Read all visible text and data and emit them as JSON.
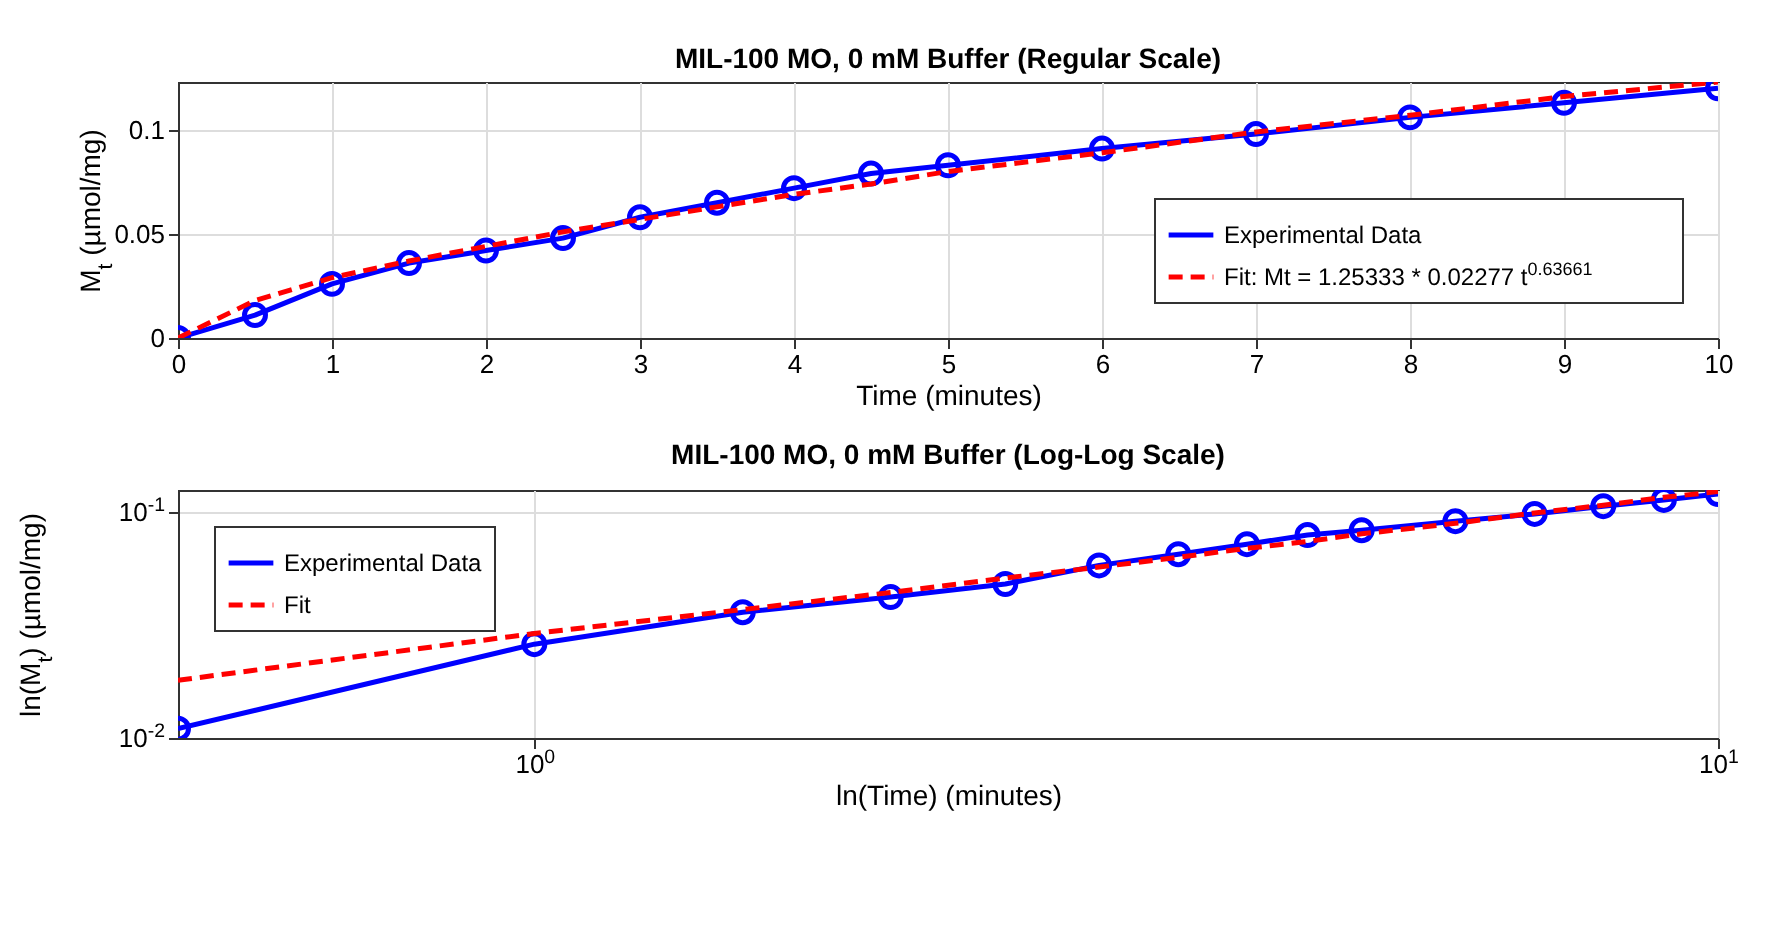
{
  "chart_data": [
    {
      "type": "line",
      "title": "MIL-100 MO, 0 mM Buffer (Regular Scale)",
      "xlabel": "Time (minutes)",
      "ylabel": "M$_{t}$ (µmol/mg)",
      "series": [
        {
          "name": "Experimental Data",
          "color": "#0000ff",
          "marker": "circle",
          "line_style": "solid",
          "x": [
            0,
            0.5,
            1,
            1.5,
            2,
            2.5,
            3,
            3.5,
            4,
            4.5,
            5,
            6,
            7,
            8,
            9,
            10
          ],
          "values": [
            0,
            0.011,
            0.026,
            0.036,
            0.042,
            0.048,
            0.058,
            0.065,
            0.072,
            0.079,
            0.083,
            0.091,
            0.098,
            0.106,
            0.113,
            0.12
          ]
        },
        {
          "name": "Fit: Mt = 1.25333 * 0.02277 t$^{0.63661}$",
          "color": "#ff0000",
          "marker": "none",
          "line_style": "dashed",
          "x": [
            0,
            0.5,
            1,
            1.5,
            2,
            2.5,
            3,
            3.5,
            4,
            4.5,
            5,
            6,
            7,
            8,
            9,
            10
          ],
          "values": [
            0,
            0.018,
            0.029,
            0.037,
            0.044,
            0.051,
            0.057,
            0.063,
            0.069,
            0.074,
            0.08,
            0.089,
            0.099,
            0.107,
            0.116,
            0.123
          ]
        }
      ],
      "xlim": [
        0,
        10
      ],
      "ylim": [
        0,
        0.123
      ],
      "xticks": [
        0,
        1,
        2,
        3,
        4,
        5,
        6,
        7,
        8,
        9,
        10
      ],
      "yticks": [
        0,
        0.05,
        0.1
      ],
      "grid": true,
      "legend": "bottom right"
    },
    {
      "type": "line",
      "title": "MIL-100 MO, 0 mM Buffer (Log-Log Scale)",
      "xlabel": "ln(Time) (minutes)",
      "ylabel": "ln(M$_{t}$) (µmol/mg)",
      "series": [
        {
          "name": "Experimental Data",
          "color": "#0000ff",
          "marker": "circle",
          "line_style": "solid",
          "x": [
            0.5,
            1,
            1.5,
            2,
            2.5,
            3,
            3.5,
            4,
            4.5,
            5,
            6,
            7,
            8,
            9,
            10
          ],
          "values": [
            0.011,
            0.026,
            0.036,
            0.042,
            0.048,
            0.058,
            0.065,
            0.072,
            0.079,
            0.083,
            0.091,
            0.098,
            0.106,
            0.113,
            0.12
          ]
        },
        {
          "name": "Fit",
          "color": "#ff0000",
          "marker": "none",
          "line_style": "dashed",
          "x": [
            0.5,
            1,
            1.5,
            2,
            2.5,
            3,
            3.5,
            4,
            4.5,
            5,
            6,
            7,
            8,
            9,
            10
          ],
          "values": [
            0.018,
            0.029,
            0.037,
            0.044,
            0.051,
            0.057,
            0.063,
            0.069,
            0.074,
            0.08,
            0.089,
            0.099,
            0.107,
            0.116,
            0.123
          ]
        }
      ],
      "xlim": [
        0.5,
        10
      ],
      "ylim": [
        0.01,
        0.125
      ],
      "xticks": [
        {
          "value": 1,
          "label": "10$^{0}$"
        },
        {
          "value": 10,
          "label": "10$^{1}$"
        }
      ],
      "yticks": [
        {
          "value": 0.01,
          "label": "10$^{-2}$"
        },
        {
          "value": 0.1,
          "label": "10$^{-1}$"
        }
      ],
      "grid": true,
      "log": "xy",
      "legend": "top left"
    }
  ]
}
